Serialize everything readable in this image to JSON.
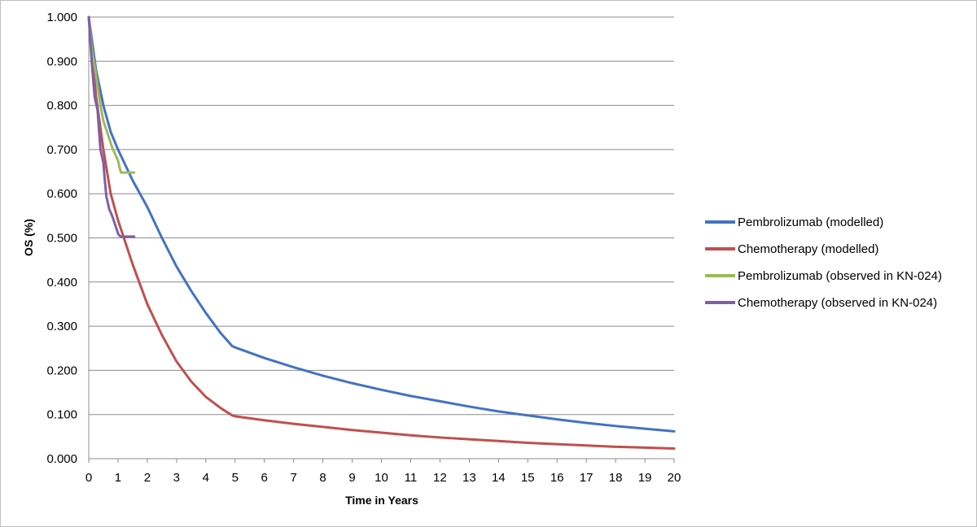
{
  "chart_data": {
    "type": "line",
    "title": "",
    "xlabel": "Time in Years",
    "ylabel": "OS (%)",
    "xlim": [
      0,
      20
    ],
    "ylim": [
      0,
      1
    ],
    "x_ticks": [
      "0",
      "1",
      "2",
      "3",
      "4",
      "5",
      "6",
      "7",
      "8",
      "9",
      "10",
      "11",
      "12",
      "13",
      "14",
      "15",
      "16",
      "17",
      "18",
      "19",
      "20"
    ],
    "y_ticks": [
      "0.000",
      "0.100",
      "0.200",
      "0.300",
      "0.400",
      "0.500",
      "0.600",
      "0.700",
      "0.800",
      "0.900",
      "1.000"
    ],
    "grid": "horizontal",
    "legend_position": "right",
    "series": [
      {
        "name": "Pembrolizumab (modelled)",
        "color": "#4472c4",
        "x": [
          0,
          0.25,
          0.5,
          0.75,
          1,
          1.25,
          1.5,
          2,
          2.5,
          3,
          3.5,
          4,
          4.5,
          4.9,
          5,
          6,
          7,
          8,
          9,
          10,
          11,
          12,
          13,
          14,
          15,
          16,
          17,
          18,
          19,
          20
        ],
        "y": [
          1.0,
          0.88,
          0.8,
          0.74,
          0.7,
          0.665,
          0.63,
          0.57,
          0.5,
          0.435,
          0.38,
          0.33,
          0.285,
          0.255,
          0.252,
          0.228,
          0.207,
          0.188,
          0.171,
          0.156,
          0.142,
          0.13,
          0.118,
          0.107,
          0.098,
          0.089,
          0.081,
          0.074,
          0.068,
          0.062
        ]
      },
      {
        "name": "Chemotherapy (modelled)",
        "color": "#c0504d",
        "x": [
          0,
          0.25,
          0.5,
          0.75,
          1,
          1.25,
          1.5,
          2,
          2.5,
          3,
          3.5,
          4,
          4.5,
          4.9,
          5,
          6,
          7,
          8,
          9,
          10,
          11,
          12,
          13,
          14,
          15,
          16,
          17,
          18,
          19,
          20
        ],
        "y": [
          1.0,
          0.82,
          0.7,
          0.6,
          0.54,
          0.49,
          0.44,
          0.35,
          0.28,
          0.22,
          0.175,
          0.14,
          0.115,
          0.098,
          0.096,
          0.087,
          0.079,
          0.072,
          0.065,
          0.059,
          0.053,
          0.048,
          0.044,
          0.04,
          0.036,
          0.033,
          0.03,
          0.027,
          0.025,
          0.023
        ]
      },
      {
        "name": "Pembrolizumab (observed in KN-024)",
        "color": "#9bbb59",
        "x": [
          0,
          0.05,
          0.1,
          0.2,
          0.3,
          0.4,
          0.5,
          0.6,
          0.7,
          0.8,
          0.9,
          1.0,
          1.05,
          1.1,
          1.15,
          1.2,
          1.3,
          1.4,
          1.55
        ],
        "y": [
          1.0,
          0.965,
          0.93,
          0.89,
          0.845,
          0.8,
          0.765,
          0.745,
          0.725,
          0.705,
          0.69,
          0.675,
          0.66,
          0.648,
          0.648,
          0.648,
          0.648,
          0.648,
          0.648
        ]
      },
      {
        "name": "Chemotherapy (observed in KN-024)",
        "color": "#7f5fa8",
        "x": [
          0,
          0.05,
          0.1,
          0.15,
          0.2,
          0.3,
          0.4,
          0.5,
          0.55,
          0.6,
          0.65,
          0.7,
          0.8,
          0.9,
          1.0,
          1.05,
          1.1,
          1.2,
          1.3,
          1.4,
          1.55
        ],
        "y": [
          1.0,
          0.95,
          0.9,
          0.86,
          0.82,
          0.79,
          0.7,
          0.67,
          0.63,
          0.595,
          0.58,
          0.565,
          0.55,
          0.53,
          0.51,
          0.505,
          0.503,
          0.503,
          0.503,
          0.503,
          0.503
        ]
      }
    ]
  }
}
